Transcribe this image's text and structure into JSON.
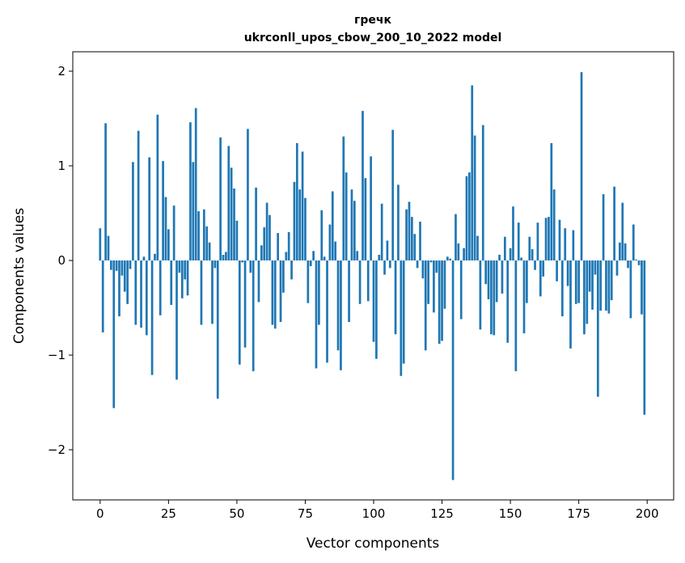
{
  "chart_data": {
    "type": "bar",
    "title": "гречк",
    "subtitle": "ukrconll_upos_cbow_200_10_2022 model",
    "xlabel": "Vector components",
    "ylabel": "Components values",
    "xlim": [
      -10,
      209.7
    ],
    "ylim": [
      -2.53,
      2.205
    ],
    "xticks": [
      0,
      25,
      50,
      75,
      100,
      125,
      150,
      175,
      200
    ],
    "xtick_labels": [
      "0",
      "25",
      "50",
      "75",
      "100",
      "125",
      "150",
      "175",
      "200"
    ],
    "yticks": [
      -2,
      -1,
      0,
      1,
      2
    ],
    "ytick_labels": [
      "−2",
      "−1",
      "0",
      "1",
      "2"
    ],
    "grid": false,
    "color": "#1f77b4",
    "values": [
      0.34,
      -0.76,
      1.45,
      0.26,
      -0.1,
      -1.56,
      -0.11,
      -0.59,
      -0.16,
      -0.33,
      -0.46,
      -0.09,
      1.04,
      -0.68,
      1.37,
      -0.71,
      0.04,
      -0.79,
      1.09,
      -1.21,
      0.07,
      1.54,
      -0.58,
      1.05,
      0.67,
      0.33,
      -0.47,
      0.58,
      -1.26,
      -0.13,
      -0.4,
      -0.2,
      -0.37,
      1.46,
      1.04,
      1.61,
      0.52,
      -0.68,
      0.54,
      0.36,
      0.19,
      -0.67,
      -0.08,
      -1.46,
      1.3,
      0.06,
      0.09,
      1.21,
      0.98,
      0.76,
      0.42,
      -1.1,
      -0.02,
      -0.92,
      1.39,
      -0.13,
      -1.17,
      0.77,
      -0.44,
      0.16,
      0.35,
      0.61,
      0.48,
      -0.68,
      -0.72,
      0.29,
      -0.65,
      -0.34,
      0.09,
      0.3,
      -0.2,
      0.83,
      1.24,
      0.75,
      1.15,
      0.66,
      -0.45,
      -0.06,
      0.1,
      -1.14,
      -0.68,
      0.53,
      0.04,
      -1.08,
      0.38,
      0.73,
      0.2,
      -0.95,
      -1.16,
      1.31,
      0.93,
      -0.65,
      0.75,
      0.63,
      0.1,
      -0.46,
      1.58,
      0.87,
      -0.43,
      1.1,
      -0.86,
      -1.04,
      0.06,
      0.6,
      -0.15,
      0.21,
      -0.08,
      1.38,
      -0.78,
      0.8,
      -1.22,
      -1.09,
      0.54,
      0.62,
      0.46,
      0.28,
      -0.08,
      0.41,
      -0.19,
      -0.95,
      -0.46,
      -0.02,
      -0.55,
      -0.13,
      -0.88,
      -0.85,
      -0.51,
      0.04,
      0.02,
      -2.32,
      0.49,
      0.18,
      -0.62,
      0.13,
      0.89,
      0.93,
      1.85,
      1.32,
      0.26,
      -0.73,
      1.43,
      -0.25,
      -0.41,
      -0.78,
      -0.79,
      -0.44,
      0.06,
      -0.35,
      0.25,
      -0.87,
      0.13,
      0.57,
      -1.17,
      0.4,
      0.03,
      -0.77,
      -0.45,
      0.25,
      0.12,
      -0.1,
      0.4,
      -0.38,
      -0.17,
      0.45,
      0.46,
      1.24,
      0.75,
      -0.22,
      0.43,
      -0.59,
      0.34,
      -0.27,
      -0.93,
      0.32,
      -0.46,
      -0.45,
      1.99,
      -0.78,
      -0.67,
      -0.33,
      -0.52,
      -0.15,
      -1.44,
      -0.53,
      0.7,
      -0.53,
      -0.56,
      -0.42,
      0.78,
      -0.16,
      0.19,
      0.61,
      0.18,
      -0.08,
      -0.61,
      0.38,
      0.01,
      -0.05,
      -0.57,
      -1.63
    ]
  }
}
